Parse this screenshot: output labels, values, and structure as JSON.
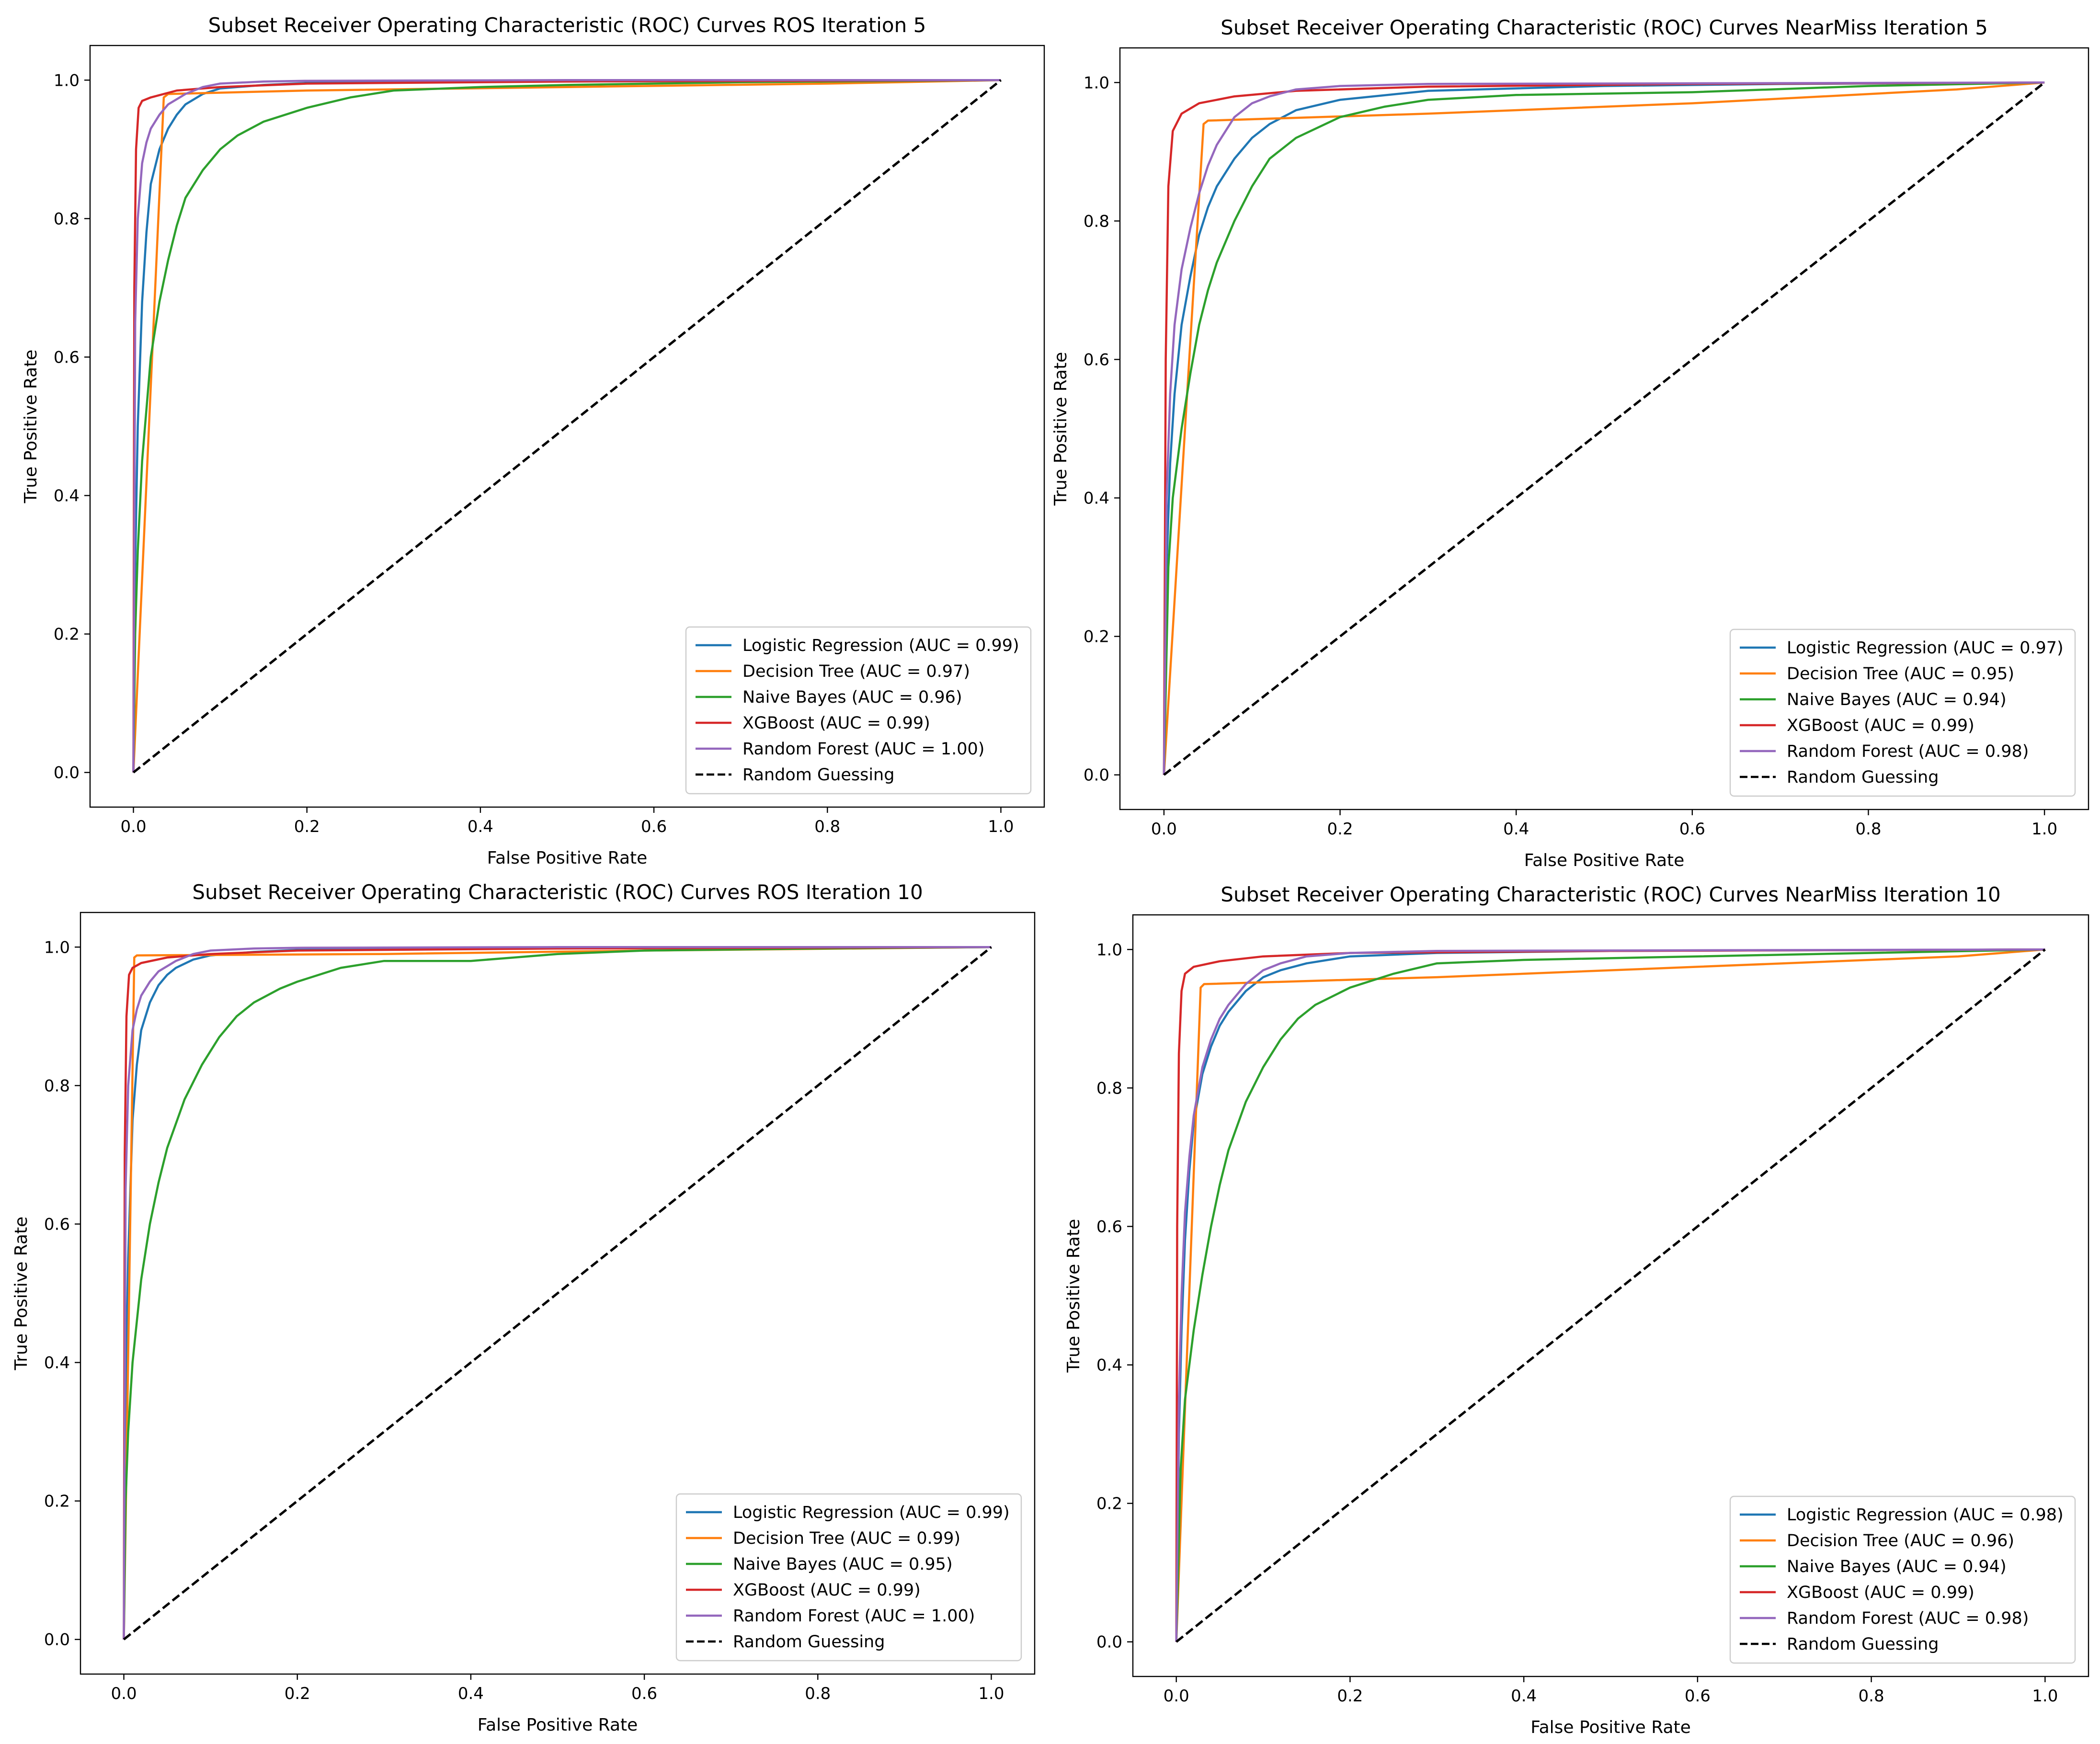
{
  "colors": {
    "logistic": "#1f77b4",
    "tree": "#ff7f0e",
    "bayes": "#2ca02c",
    "xgb": "#d62728",
    "forest": "#9467bd",
    "guess": "#000000"
  },
  "chart_data": [
    {
      "type": "line",
      "title": "Subset Receiver Operating Characteristic (ROC) Curves ROS Iteration 5",
      "xlabel": "False Positive Rate",
      "ylabel": "True Positive Rate",
      "xlim": [
        -0.05,
        1.05
      ],
      "ylim": [
        -0.05,
        1.05
      ],
      "xticks": [
        "0.0",
        "0.2",
        "0.4",
        "0.6",
        "0.8",
        "1.0"
      ],
      "yticks": [
        "0.0",
        "0.2",
        "0.4",
        "0.6",
        "0.8",
        "1.0"
      ],
      "legend_position": "lower-right",
      "series": [
        {
          "name": "Logistic Regression (AUC = 0.99)",
          "color": "logistic",
          "style": "solid",
          "x": [
            0,
            0.002,
            0.005,
            0.01,
            0.015,
            0.02,
            0.03,
            0.04,
            0.05,
            0.06,
            0.08,
            0.1,
            0.15,
            0.2,
            0.3,
            0.5,
            0.7,
            1.0
          ],
          "y": [
            0,
            0.3,
            0.5,
            0.68,
            0.78,
            0.85,
            0.9,
            0.93,
            0.95,
            0.965,
            0.98,
            0.988,
            0.993,
            0.996,
            0.998,
            0.999,
            1.0,
            1.0
          ]
        },
        {
          "name": "Decision Tree (AUC = 0.97)",
          "color": "tree",
          "style": "solid",
          "x": [
            0,
            0.035,
            0.04,
            0.2,
            0.5,
            0.8,
            1.0
          ],
          "y": [
            0,
            0.975,
            0.98,
            0.985,
            0.99,
            0.995,
            1.0
          ]
        },
        {
          "name": "Naive Bayes (AUC = 0.96)",
          "color": "bayes",
          "style": "solid",
          "x": [
            0,
            0.002,
            0.005,
            0.01,
            0.02,
            0.03,
            0.04,
            0.05,
            0.06,
            0.07,
            0.08,
            0.1,
            0.12,
            0.15,
            0.2,
            0.25,
            0.3,
            0.4,
            0.5,
            0.7,
            1.0
          ],
          "y": [
            0,
            0.2,
            0.32,
            0.45,
            0.6,
            0.68,
            0.74,
            0.79,
            0.83,
            0.85,
            0.87,
            0.9,
            0.92,
            0.94,
            0.96,
            0.975,
            0.985,
            0.99,
            0.993,
            0.997,
            1.0
          ]
        },
        {
          "name": "XGBoost (AUC = 0.99)",
          "color": "xgb",
          "style": "solid",
          "x": [
            0,
            0.001,
            0.003,
            0.006,
            0.01,
            0.02,
            0.05,
            0.1,
            0.2,
            0.5,
            1.0
          ],
          "y": [
            0,
            0.7,
            0.9,
            0.96,
            0.97,
            0.975,
            0.985,
            0.99,
            0.995,
            0.998,
            1.0
          ]
        },
        {
          "name": "Random Forest (AUC = 1.00)",
          "color": "forest",
          "style": "solid",
          "x": [
            0,
            0.002,
            0.005,
            0.01,
            0.015,
            0.02,
            0.03,
            0.04,
            0.06,
            0.08,
            0.1,
            0.15,
            0.2,
            0.5,
            1.0
          ],
          "y": [
            0,
            0.65,
            0.8,
            0.88,
            0.91,
            0.93,
            0.95,
            0.965,
            0.98,
            0.99,
            0.995,
            0.998,
            0.999,
            1.0,
            1.0
          ]
        },
        {
          "name": "Random Guessing",
          "color": "guess",
          "style": "dashed",
          "x": [
            0,
            1
          ],
          "y": [
            0,
            1
          ]
        }
      ]
    },
    {
      "type": "line",
      "title": "Subset Receiver Operating Characteristic (ROC) Curves NearMiss Iteration 5",
      "xlabel": "False Positive Rate",
      "ylabel": "True Positive Rate",
      "xlim": [
        -0.05,
        1.05
      ],
      "ylim": [
        -0.05,
        1.05
      ],
      "xticks": [
        "0.0",
        "0.2",
        "0.4",
        "0.6",
        "0.8",
        "1.0"
      ],
      "yticks": [
        "0.0",
        "0.2",
        "0.4",
        "0.6",
        "0.8",
        "1.0"
      ],
      "legend_position": "lower-right",
      "series": [
        {
          "name": "Logistic Regression (AUC = 0.97)",
          "color": "logistic",
          "style": "solid",
          "x": [
            0,
            0.003,
            0.007,
            0.012,
            0.02,
            0.03,
            0.04,
            0.05,
            0.06,
            0.08,
            0.1,
            0.12,
            0.15,
            0.2,
            0.3,
            0.5,
            0.7,
            1.0
          ],
          "y": [
            0,
            0.3,
            0.45,
            0.55,
            0.65,
            0.72,
            0.78,
            0.82,
            0.85,
            0.89,
            0.92,
            0.94,
            0.96,
            0.975,
            0.988,
            0.995,
            0.998,
            1.0
          ]
        },
        {
          "name": "Decision Tree (AUC = 0.95)",
          "color": "tree",
          "style": "solid",
          "x": [
            0,
            0.045,
            0.05,
            0.3,
            0.6,
            0.9,
            1.0
          ],
          "y": [
            0,
            0.94,
            0.945,
            0.955,
            0.97,
            0.99,
            1.0
          ]
        },
        {
          "name": "Naive Bayes (AUC = 0.94)",
          "color": "bayes",
          "style": "solid",
          "x": [
            0,
            0.005,
            0.01,
            0.02,
            0.03,
            0.04,
            0.05,
            0.06,
            0.08,
            0.1,
            0.12,
            0.15,
            0.2,
            0.25,
            0.3,
            0.4,
            0.6,
            0.8,
            1.0
          ],
          "y": [
            0,
            0.3,
            0.4,
            0.5,
            0.58,
            0.65,
            0.7,
            0.74,
            0.8,
            0.85,
            0.89,
            0.92,
            0.95,
            0.965,
            0.975,
            0.982,
            0.986,
            0.995,
            1.0
          ]
        },
        {
          "name": "XGBoost (AUC = 0.99)",
          "color": "xgb",
          "style": "solid",
          "x": [
            0,
            0.002,
            0.005,
            0.01,
            0.02,
            0.04,
            0.08,
            0.15,
            0.3,
            0.6,
            1.0
          ],
          "y": [
            0,
            0.6,
            0.85,
            0.93,
            0.955,
            0.97,
            0.98,
            0.988,
            0.994,
            0.998,
            1.0
          ]
        },
        {
          "name": "Random Forest (AUC = 0.98)",
          "color": "forest",
          "style": "solid",
          "x": [
            0,
            0.003,
            0.007,
            0.012,
            0.02,
            0.03,
            0.04,
            0.05,
            0.06,
            0.08,
            0.1,
            0.12,
            0.15,
            0.2,
            0.3,
            1.0
          ],
          "y": [
            0,
            0.4,
            0.55,
            0.65,
            0.73,
            0.79,
            0.84,
            0.88,
            0.91,
            0.95,
            0.97,
            0.98,
            0.99,
            0.995,
            0.998,
            1.0
          ]
        },
        {
          "name": "Random Guessing",
          "color": "guess",
          "style": "dashed",
          "x": [
            0,
            1
          ],
          "y": [
            0,
            1
          ]
        }
      ]
    },
    {
      "type": "line",
      "title": "Subset Receiver Operating Characteristic (ROC) Curves ROS Iteration 10",
      "xlabel": "False Positive Rate",
      "ylabel": "True Positive Rate",
      "xlim": [
        -0.05,
        1.05
      ],
      "ylim": [
        -0.05,
        1.05
      ],
      "xticks": [
        "0.0",
        "0.2",
        "0.4",
        "0.6",
        "0.8",
        "1.0"
      ],
      "yticks": [
        "0.0",
        "0.2",
        "0.4",
        "0.6",
        "0.8",
        "1.0"
      ],
      "legend_position": "lower-right",
      "series": [
        {
          "name": "Logistic Regression (AUC = 0.99)",
          "color": "logistic",
          "style": "solid",
          "x": [
            0,
            0.002,
            0.005,
            0.01,
            0.015,
            0.02,
            0.03,
            0.04,
            0.05,
            0.06,
            0.08,
            0.1,
            0.15,
            0.2,
            0.3,
            0.5,
            1.0
          ],
          "y": [
            0,
            0.35,
            0.55,
            0.75,
            0.83,
            0.88,
            0.92,
            0.945,
            0.96,
            0.97,
            0.982,
            0.988,
            0.993,
            0.996,
            0.998,
            0.999,
            1.0
          ]
        },
        {
          "name": "Decision Tree (AUC = 0.99)",
          "color": "tree",
          "style": "solid",
          "x": [
            0,
            0.012,
            0.015,
            0.3,
            0.6,
            1.0
          ],
          "y": [
            0,
            0.985,
            0.988,
            0.99,
            0.995,
            1.0
          ]
        },
        {
          "name": "Naive Bayes (AUC = 0.95)",
          "color": "bayes",
          "style": "solid",
          "x": [
            0,
            0.002,
            0.005,
            0.01,
            0.02,
            0.03,
            0.04,
            0.05,
            0.07,
            0.09,
            0.11,
            0.13,
            0.15,
            0.18,
            0.2,
            0.25,
            0.3,
            0.35,
            0.4,
            0.45,
            0.5,
            0.6,
            0.8,
            1.0
          ],
          "y": [
            0,
            0.2,
            0.3,
            0.4,
            0.52,
            0.6,
            0.66,
            0.71,
            0.78,
            0.83,
            0.87,
            0.9,
            0.92,
            0.94,
            0.95,
            0.97,
            0.98,
            0.98,
            0.98,
            0.985,
            0.99,
            0.995,
            0.998,
            1.0
          ]
        },
        {
          "name": "XGBoost (AUC = 0.99)",
          "color": "xgb",
          "style": "solid",
          "x": [
            0,
            0.001,
            0.003,
            0.006,
            0.01,
            0.02,
            0.05,
            0.1,
            0.2,
            0.5,
            1.0
          ],
          "y": [
            0,
            0.7,
            0.9,
            0.96,
            0.97,
            0.977,
            0.985,
            0.99,
            0.995,
            0.998,
            1.0
          ]
        },
        {
          "name": "Random Forest (AUC = 1.00)",
          "color": "forest",
          "style": "solid",
          "x": [
            0,
            0.002,
            0.005,
            0.01,
            0.015,
            0.02,
            0.03,
            0.04,
            0.06,
            0.08,
            0.1,
            0.15,
            0.2,
            0.5,
            1.0
          ],
          "y": [
            0,
            0.65,
            0.8,
            0.88,
            0.91,
            0.93,
            0.95,
            0.965,
            0.98,
            0.99,
            0.995,
            0.998,
            0.999,
            1.0,
            1.0
          ]
        },
        {
          "name": "Random Guessing",
          "color": "guess",
          "style": "dashed",
          "x": [
            0,
            1
          ],
          "y": [
            0,
            1
          ]
        }
      ]
    },
    {
      "type": "line",
      "title": "Subset Receiver Operating Characteristic (ROC) Curves NearMiss Iteration 10",
      "xlabel": "False Positive Rate",
      "ylabel": "True Positive Rate",
      "xlim": [
        -0.05,
        1.05
      ],
      "ylim": [
        -0.05,
        1.05
      ],
      "xticks": [
        "0.0",
        "0.2",
        "0.4",
        "0.6",
        "0.8",
        "1.0"
      ],
      "yticks": [
        "0.0",
        "0.2",
        "0.4",
        "0.6",
        "0.8",
        "1.0"
      ],
      "legend_position": "lower-right",
      "series": [
        {
          "name": "Logistic Regression (AUC = 0.98)",
          "color": "logistic",
          "style": "solid",
          "x": [
            0,
            0.003,
            0.006,
            0.01,
            0.015,
            0.02,
            0.03,
            0.04,
            0.05,
            0.06,
            0.08,
            0.1,
            0.12,
            0.15,
            0.2,
            0.3,
            0.5,
            1.0
          ],
          "y": [
            0,
            0.3,
            0.45,
            0.58,
            0.68,
            0.75,
            0.82,
            0.86,
            0.89,
            0.91,
            0.94,
            0.96,
            0.97,
            0.98,
            0.99,
            0.995,
            0.998,
            1.0
          ]
        },
        {
          "name": "Decision Tree (AUC = 0.96)",
          "color": "tree",
          "style": "solid",
          "x": [
            0,
            0.028,
            0.032,
            0.3,
            0.6,
            0.9,
            1.0
          ],
          "y": [
            0,
            0.945,
            0.95,
            0.96,
            0.975,
            0.99,
            1.0
          ]
        },
        {
          "name": "Naive Bayes (AUC = 0.94)",
          "color": "bayes",
          "style": "solid",
          "x": [
            0,
            0.005,
            0.01,
            0.02,
            0.03,
            0.04,
            0.05,
            0.06,
            0.08,
            0.1,
            0.12,
            0.14,
            0.16,
            0.2,
            0.25,
            0.3,
            0.4,
            0.6,
            0.8,
            1.0
          ],
          "y": [
            0,
            0.25,
            0.35,
            0.45,
            0.53,
            0.6,
            0.66,
            0.71,
            0.78,
            0.83,
            0.87,
            0.9,
            0.92,
            0.945,
            0.965,
            0.98,
            0.985,
            0.99,
            0.995,
            1.0
          ]
        },
        {
          "name": "XGBoost (AUC = 0.99)",
          "color": "xgb",
          "style": "solid",
          "x": [
            0,
            0.001,
            0.003,
            0.006,
            0.01,
            0.02,
            0.05,
            0.1,
            0.2,
            0.5,
            1.0
          ],
          "y": [
            0,
            0.6,
            0.85,
            0.94,
            0.965,
            0.975,
            0.983,
            0.99,
            0.995,
            0.998,
            1.0
          ]
        },
        {
          "name": "Random Forest (AUC = 0.98)",
          "color": "forest",
          "style": "solid",
          "x": [
            0,
            0.003,
            0.006,
            0.01,
            0.015,
            0.02,
            0.03,
            0.04,
            0.05,
            0.06,
            0.08,
            0.1,
            0.12,
            0.15,
            0.2,
            0.3,
            1.0
          ],
          "y": [
            0,
            0.35,
            0.5,
            0.62,
            0.7,
            0.76,
            0.83,
            0.87,
            0.9,
            0.92,
            0.95,
            0.97,
            0.98,
            0.99,
            0.995,
            0.998,
            1.0
          ]
        },
        {
          "name": "Random Guessing",
          "color": "guess",
          "style": "dashed",
          "x": [
            0,
            1
          ],
          "y": [
            0,
            1
          ]
        }
      ]
    }
  ]
}
